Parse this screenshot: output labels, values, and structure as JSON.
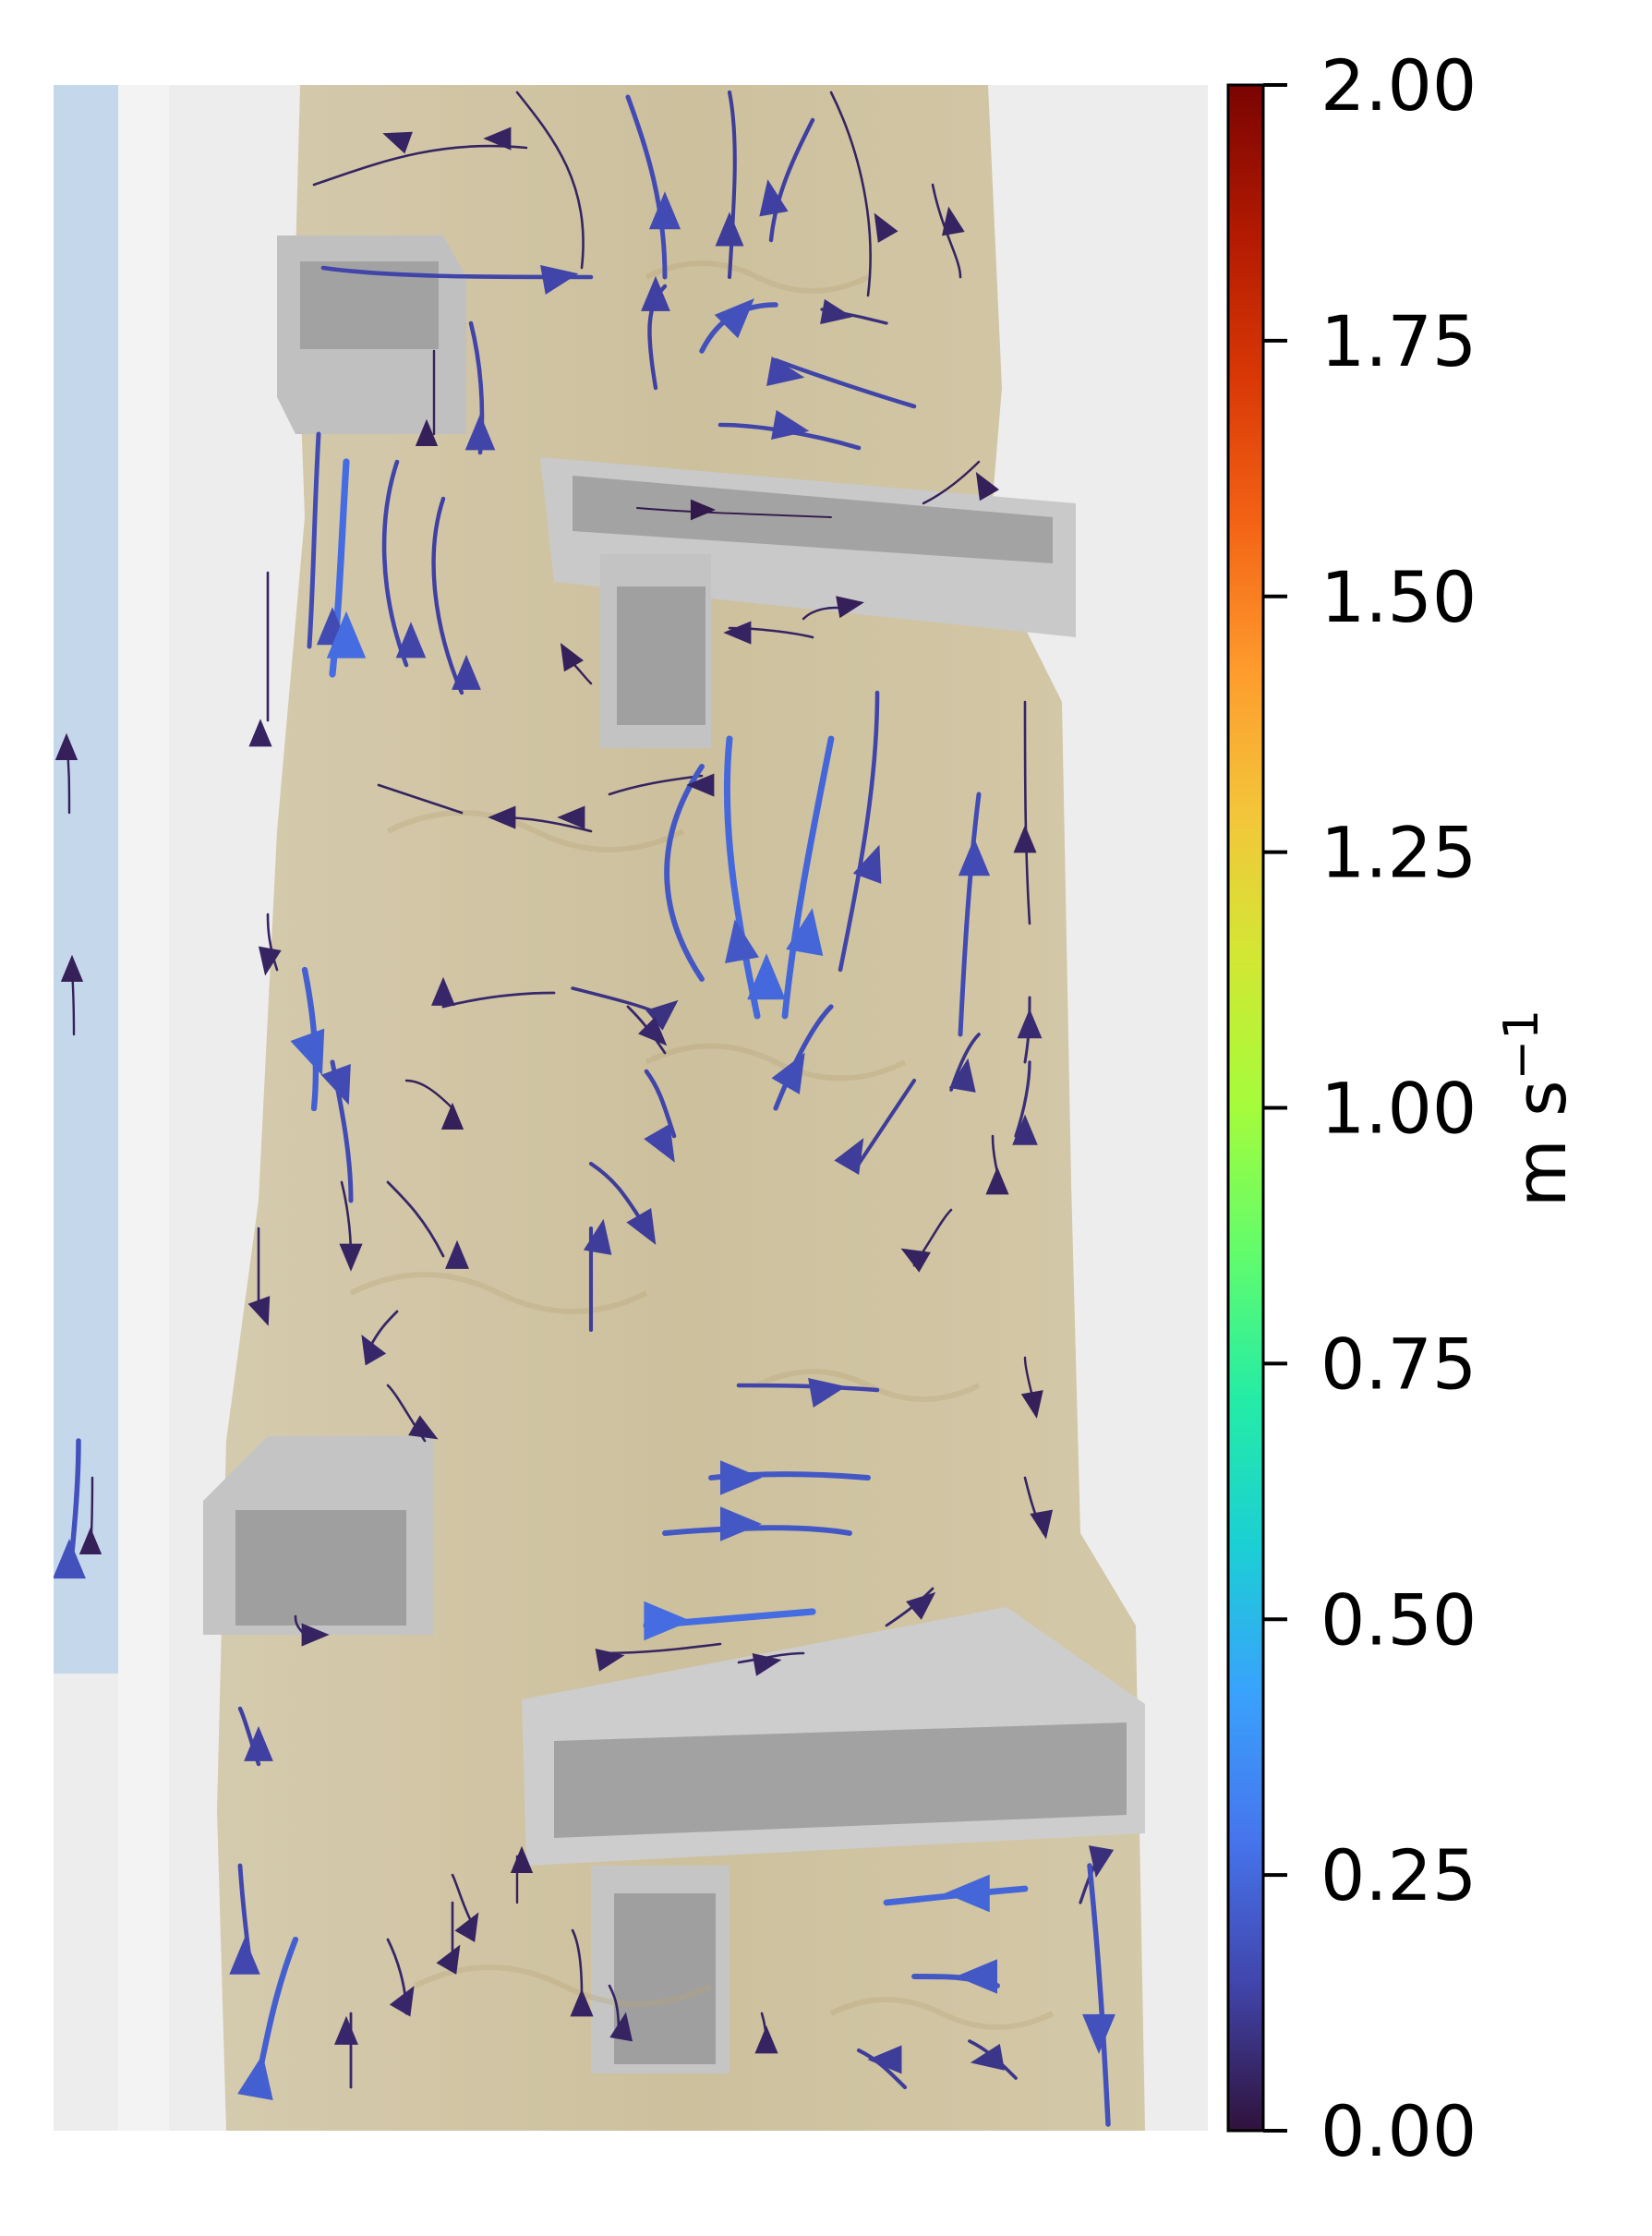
{
  "chart_data": {
    "type": "streamplot",
    "title": "",
    "xlabel": "",
    "ylabel": "",
    "background": "photograph of a flume channel with rectangular aluminium obstacles",
    "colorbar": {
      "label": "m s⁻¹",
      "label_base": "m s",
      "label_exp": "−1",
      "colormap": "turbo",
      "range": [
        0.0,
        2.0
      ],
      "ticks": [
        0.0,
        0.25,
        0.5,
        0.75,
        1.0,
        1.25,
        1.5,
        1.75,
        2.0
      ],
      "tick_labels": [
        "0.00",
        "0.25",
        "0.50",
        "0.75",
        "1.00",
        "1.25",
        "1.50",
        "1.75",
        "2.00"
      ],
      "stops": [
        "#30123b",
        "#4145ab",
        "#4675ed",
        "#39a2fc",
        "#1bcfd4",
        "#24eca6",
        "#61fc6c",
        "#a4fc3b",
        "#d1e834",
        "#f3c63a",
        "#fe9b2d",
        "#f36315",
        "#d93806",
        "#b11901",
        "#7a0402"
      ]
    },
    "speed_range_observed": [
      0.0,
      0.35
    ],
    "grid": false,
    "legend": "none"
  }
}
